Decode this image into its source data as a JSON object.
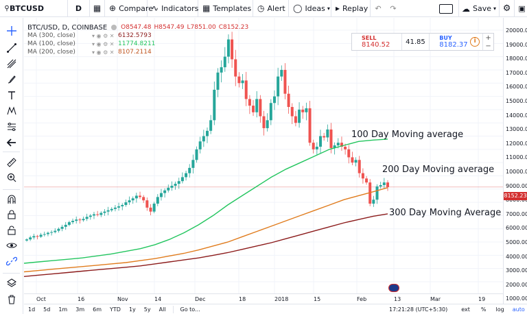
{
  "toolbar": {
    "symbol": "BTCUSD",
    "interval": "D",
    "compare": "Compare",
    "indicators": "Indicators",
    "templates": "Templates",
    "alert": "Alert",
    "ideas": "Ideas",
    "replay": "Replay",
    "save": "Save"
  },
  "legend": {
    "main": "BTC/USD, D, COINBASE",
    "open": "O8547.48",
    "high": "H8547.49",
    "low": "L7851.00",
    "close": "C8152.23",
    "ma": [
      {
        "name": "MA (300, close)",
        "value": "6132.5793",
        "color": "#8b1a1a"
      },
      {
        "name": "MA (100, close)",
        "value": "11774.8211",
        "color": "#22c55e"
      },
      {
        "name": "MA (200, close)",
        "value": "8107.2114",
        "color": "#e07b1c"
      }
    ]
  },
  "trade": {
    "sell_label": "SELL",
    "sell_value": "8140.52",
    "spread": "41.85",
    "buy_label": "BUY",
    "buy_value": "8182.37",
    "plus": "+",
    "minus": "−"
  },
  "annotations": {
    "ma100": "100 Day Moving average",
    "ma200": "200 Day Moving average",
    "ma300": "300 Day Moving Average"
  },
  "price_axis": [
    "20000.00",
    "19000.00",
    "18000.00",
    "17000.00",
    "16000.00",
    "15000.00",
    "14000.00",
    "13000.00",
    "12000.00",
    "11000.00",
    "10000.00",
    "9000.00",
    "8000.00",
    "7000.00",
    "6000.00",
    "5000.00",
    "4000.00",
    "3000.00",
    "2000.00",
    "1000.00"
  ],
  "current_price": "8152.23",
  "time_axis": [
    "Oct",
    "16",
    "Nov",
    "14",
    "Dec",
    "18",
    "2018",
    "15",
    "Feb",
    "13",
    "Mar",
    "19"
  ],
  "bottom": {
    "ranges": [
      "1d",
      "5d",
      "1m",
      "3m",
      "6m",
      "YTD",
      "1y",
      "5y",
      "All"
    ],
    "goto": "Go to...",
    "time": "17:21:28 (UTC+5:30)",
    "ext": "ext",
    "pct": "%",
    "log": "log",
    "auto": "auto"
  },
  "colors": {
    "up": "#26a69a",
    "down": "#ef5350",
    "ma100": "#22c55e",
    "ma200": "#e07b1c",
    "ma300": "#8b1a1a"
  },
  "chart_data": {
    "type": "candlestick",
    "symbol": "BTC/USD",
    "interval": "D",
    "ylim": [
      1000,
      20000
    ],
    "x_labels": [
      "Oct",
      "16",
      "Nov",
      "14",
      "Dec",
      "18",
      "2018",
      "15",
      "Feb",
      "13",
      "Mar",
      "19"
    ],
    "closes": [
      4200,
      4350,
      4450,
      4400,
      4550,
      4600,
      4700,
      4750,
      4850,
      5000,
      5150,
      5300,
      5500,
      5600,
      5700,
      5650,
      5750,
      5900,
      6000,
      6100,
      6050,
      6200,
      6300,
      6400,
      6500,
      6600,
      6700,
      6800,
      7000,
      7150,
      7300,
      7500,
      7400,
      7150,
      6600,
      6300,
      6900,
      7400,
      7700,
      7900,
      8100,
      8250,
      8400,
      8600,
      8900,
      9200,
      9600,
      10200,
      11000,
      11600,
      12000,
      12400,
      13200,
      15500,
      16800,
      17200,
      18000,
      19300,
      17800,
      16500,
      16000,
      16200,
      14800,
      14300,
      13800,
      14800,
      13500,
      12600,
      13200,
      14500,
      15000,
      16500,
      17000,
      15200,
      14200,
      13500,
      13000,
      14000,
      13800,
      14100,
      11500,
      11000,
      11200,
      12000,
      11900,
      12500,
      11100,
      11300,
      11500,
      11200,
      11000,
      10400,
      10000,
      10200,
      9200,
      8800,
      8500,
      6900,
      7200,
      8200,
      8300,
      8500,
      8150
    ],
    "series": [
      {
        "name": "MA (100, close)",
        "values": [
          2400,
          2500,
          2600,
          2700,
          2800,
          2950,
          3100,
          3300,
          3500,
          3800,
          4200,
          4700,
          5300,
          6000,
          6800,
          7500,
          8200,
          8900,
          9500,
          10000,
          10500,
          11000,
          11300,
          11600,
          11700,
          11774
        ]
      },
      {
        "name": "MA (200, close)",
        "values": [
          1750,
          1850,
          1950,
          2050,
          2150,
          2250,
          2350,
          2450,
          2600,
          2750,
          2950,
          3150,
          3400,
          3700,
          4000,
          4400,
          4800,
          5200,
          5600,
          6000,
          6400,
          6800,
          7200,
          7500,
          7800,
          8107
        ]
      },
      {
        "name": "MA (300, close)",
        "values": [
          1400,
          1500,
          1600,
          1700,
          1800,
          1900,
          2000,
          2100,
          2200,
          2350,
          2500,
          2650,
          2800,
          3000,
          3200,
          3450,
          3700,
          3950,
          4250,
          4550,
          4850,
          5150,
          5450,
          5700,
          5950,
          6132
        ]
      }
    ]
  }
}
